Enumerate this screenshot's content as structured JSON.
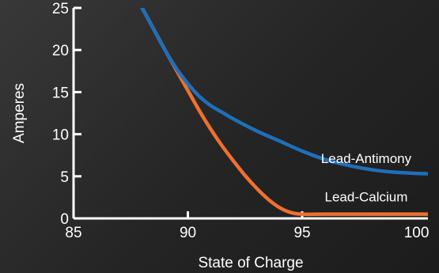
{
  "chart_data": {
    "type": "line",
    "title": "",
    "xlabel": "State of Charge",
    "ylabel": "Amperes",
    "xlim": [
      85,
      100.5
    ],
    "ylim": [
      0,
      25
    ],
    "x_ticks": [
      85,
      90,
      95,
      100
    ],
    "y_ticks": [
      0,
      5,
      10,
      15,
      20,
      25
    ],
    "grid": false,
    "legend": "none",
    "series": [
      {
        "name": "Lead-Antimony",
        "color": "#1f6fba",
        "points": [
          [
            88.0,
            25.0
          ],
          [
            88.5,
            22.5
          ],
          [
            89.0,
            20.0
          ],
          [
            89.5,
            17.8
          ],
          [
            90.0,
            16.0
          ],
          [
            90.5,
            14.5
          ],
          [
            91.0,
            13.4
          ],
          [
            91.5,
            12.6
          ],
          [
            92.0,
            11.8
          ],
          [
            93.0,
            10.4
          ],
          [
            94.0,
            9.2
          ],
          [
            95.0,
            8.0
          ],
          [
            96.0,
            7.0
          ],
          [
            97.0,
            6.3
          ],
          [
            98.0,
            5.8
          ],
          [
            99.0,
            5.5
          ],
          [
            100.0,
            5.35
          ],
          [
            100.5,
            5.3
          ]
        ]
      },
      {
        "name": "Lead-Calcium",
        "color": "#f07030",
        "points": [
          [
            88.0,
            25.0
          ],
          [
            88.5,
            22.5
          ],
          [
            89.0,
            20.0
          ],
          [
            89.5,
            17.6
          ],
          [
            90.0,
            15.2
          ],
          [
            90.5,
            12.8
          ],
          [
            91.0,
            10.6
          ],
          [
            91.5,
            8.6
          ],
          [
            92.0,
            6.8
          ],
          [
            92.5,
            5.1
          ],
          [
            93.0,
            3.6
          ],
          [
            93.5,
            2.3
          ],
          [
            94.0,
            1.3
          ],
          [
            94.5,
            0.7
          ],
          [
            95.0,
            0.5
          ],
          [
            96.0,
            0.5
          ],
          [
            98.0,
            0.5
          ],
          [
            100.5,
            0.5
          ]
        ]
      }
    ],
    "annotations": [
      {
        "text": "Lead-Antimony",
        "x": 97.8,
        "y": 6.6
      },
      {
        "text": "Lead-Calcium",
        "x": 97.8,
        "y": 2.0
      }
    ]
  }
}
